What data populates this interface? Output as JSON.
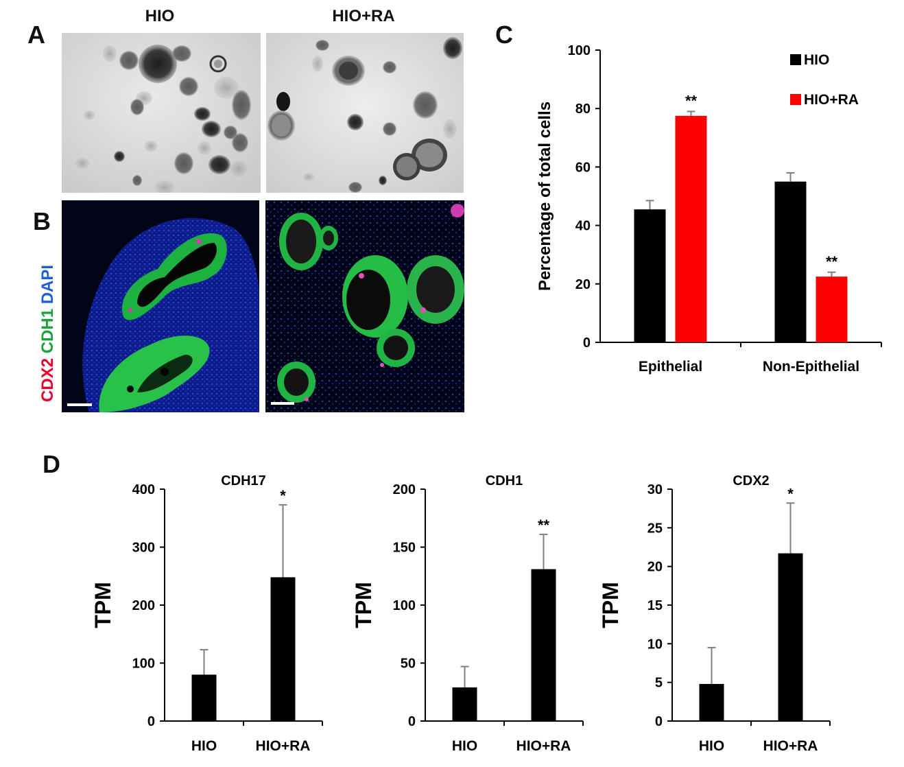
{
  "panels": {
    "a": "A",
    "b": "B",
    "c": "C",
    "d": "D"
  },
  "panel_a": {
    "col1": "HIO",
    "col2": "HIO+RA"
  },
  "panel_b": {
    "stain_red": "CDX2",
    "stain_green": "CDH1",
    "stain_blue": "DAPI",
    "colors": {
      "red": "#e8002a",
      "green": "#1aa33c",
      "blue": "#1f5fd6"
    }
  },
  "colors": {
    "HIO": "#000000",
    "HIO+RA": "#ff0000",
    "error": "#7f7f7f"
  },
  "chart_data": [
    {
      "id": "C",
      "type": "bar",
      "categories": [
        "Epithelial",
        "Non-Epithelial"
      ],
      "series": [
        {
          "name": "HIO",
          "values": [
            45.5,
            55
          ],
          "errors": [
            3,
            3
          ]
        },
        {
          "name": "HIO+RA",
          "values": [
            77.5,
            22.5
          ],
          "errors": [
            1.5,
            1.5
          ]
        }
      ],
      "significance": [
        [
          "",
          "**"
        ],
        [
          "",
          "**"
        ]
      ],
      "ylabel": "Percentage of total cells",
      "ylim": [
        0,
        100
      ],
      "yticks": [
        "0",
        "20",
        "40",
        "60",
        "80",
        "100"
      ],
      "legend": "top-right"
    },
    {
      "id": "D1",
      "type": "bar",
      "title": "CDH17",
      "categories": [
        "HIO",
        "HIO+RA"
      ],
      "values": [
        80,
        248
      ],
      "errors": [
        43,
        125
      ],
      "significance": [
        "",
        "*"
      ],
      "ylabel": "TPM",
      "ylim": [
        0,
        400
      ],
      "yticks": [
        "0",
        "100",
        "200",
        "300",
        "400"
      ]
    },
    {
      "id": "D2",
      "type": "bar",
      "title": "CDH1",
      "categories": [
        "HIO",
        "HIO+RA"
      ],
      "values": [
        29,
        131
      ],
      "errors": [
        18,
        30
      ],
      "significance": [
        "",
        "**"
      ],
      "ylabel": "TPM",
      "ylim": [
        0,
        200
      ],
      "yticks": [
        "0",
        "50",
        "100",
        "150",
        "200"
      ]
    },
    {
      "id": "D3",
      "type": "bar",
      "title": "CDX2",
      "categories": [
        "HIO",
        "HIO+RA"
      ],
      "values": [
        4.8,
        21.7
      ],
      "errors": [
        4.7,
        6.5
      ],
      "significance": [
        "",
        "*"
      ],
      "ylabel": "TPM",
      "ylim": [
        0,
        30
      ],
      "yticks": [
        "0",
        "5",
        "10",
        "15",
        "20",
        "25",
        "30"
      ]
    }
  ]
}
